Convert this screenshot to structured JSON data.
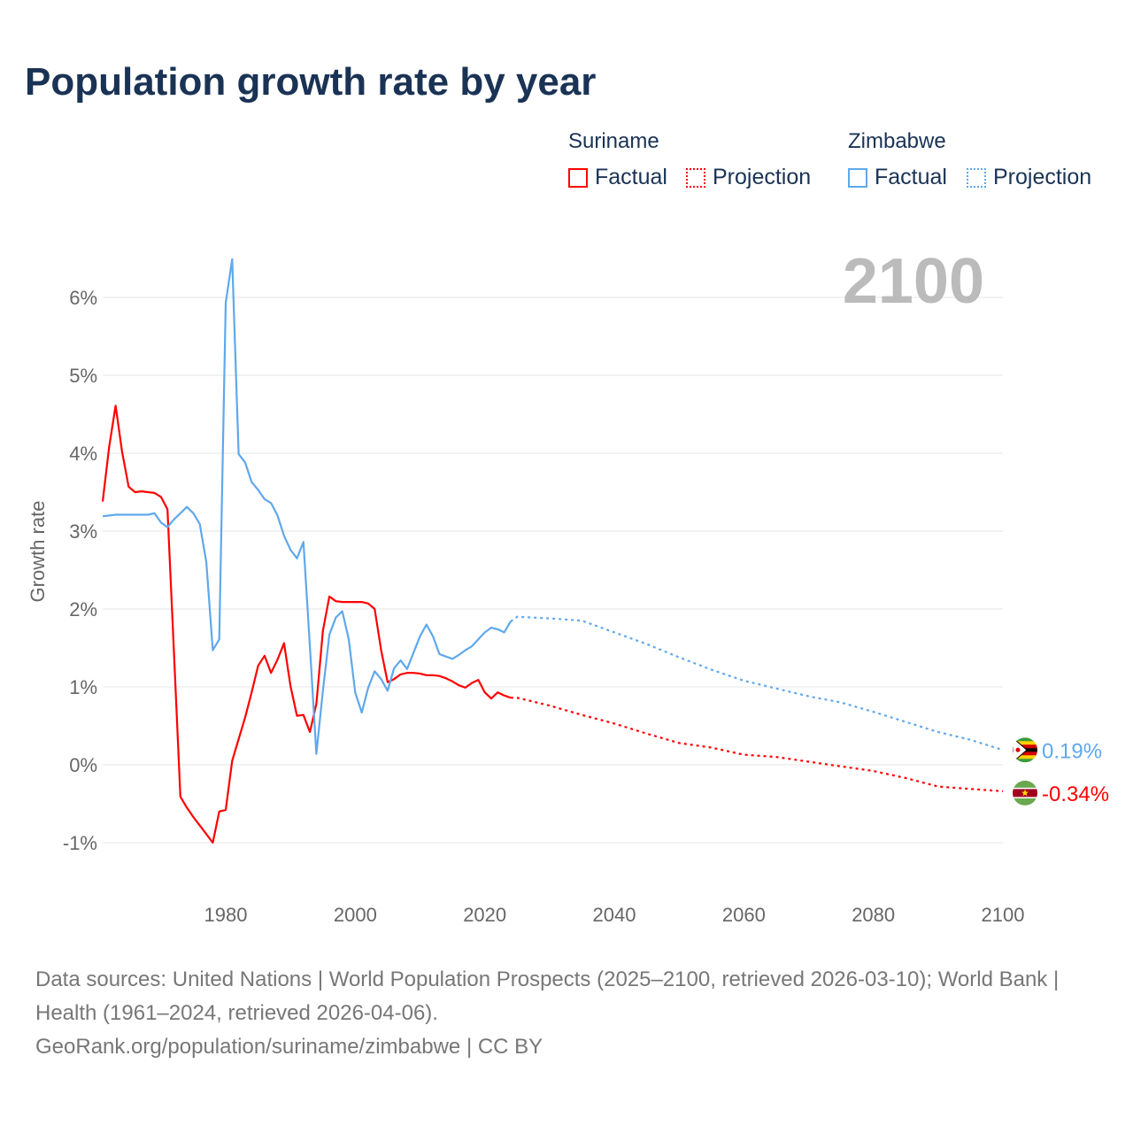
{
  "title": "Population growth rate by year",
  "legend": {
    "groups": [
      {
        "country": "Suriname",
        "factual": "Factual",
        "projection": "Projection",
        "color": "#ff0000"
      },
      {
        "country": "Zimbabwe",
        "factual": "Factual",
        "projection": "Projection",
        "color": "#5fa8ec"
      }
    ]
  },
  "year_label": "2100",
  "source": {
    "line1": "Data sources: United Nations | World Population Prospects (2025–2100, retrieved 2026-03-10); World Bank | Health (1961–2024, retrieved 2026-04-06).",
    "line2": "GeoRank.org/population/suriname/zimbabwe | CC BY"
  },
  "chart_data": {
    "type": "line",
    "title": "Population growth rate by year",
    "ylabel": "Growth rate",
    "xlabel": "",
    "xlim": [
      1961,
      2100
    ],
    "ylim": [
      -1.25,
      6.6
    ],
    "xticks": [
      1980,
      2000,
      2020,
      2040,
      2060,
      2080,
      2100
    ],
    "xtick_labels": [
      "1980",
      "2000",
      "2020",
      "2040",
      "2060",
      "2080",
      "2100"
    ],
    "yticks": [
      -1,
      0,
      1,
      2,
      3,
      4,
      5,
      6
    ],
    "ytick_labels": [
      "-1%",
      "0%",
      "1%",
      "2%",
      "3%",
      "4%",
      "5%",
      "6%"
    ],
    "grid": true,
    "legend_position": "top-right",
    "series": [
      {
        "name": "Suriname",
        "color": "#ff0000",
        "end_label": "-0.34%",
        "flag": "suriname-flag",
        "factual": {
          "x": [
            1961,
            1962,
            1963,
            1964,
            1965,
            1966,
            1967,
            1968,
            1969,
            1970,
            1971,
            1972,
            1973,
            1974,
            1975,
            1976,
            1977,
            1978,
            1979,
            1980,
            1981,
            1982,
            1983,
            1984,
            1985,
            1986,
            1987,
            1988,
            1989,
            1990,
            1991,
            1992,
            1993,
            1994,
            1995,
            1996,
            1997,
            1998,
            1999,
            2000,
            2001,
            2002,
            2003,
            2004,
            2005,
            2006,
            2007,
            2008,
            2009,
            2010,
            2011,
            2012,
            2013,
            2014,
            2015,
            2016,
            2017,
            2018,
            2019,
            2020,
            2021,
            2022,
            2023,
            2024
          ],
          "y": [
            3.38,
            4.08,
            4.61,
            4.02,
            3.57,
            3.5,
            3.51,
            3.5,
            3.49,
            3.44,
            3.28,
            1.45,
            -0.41,
            -0.55,
            -0.67,
            -0.78,
            -0.89,
            -1.0,
            -0.6,
            -0.58,
            0.05,
            0.33,
            0.61,
            0.93,
            1.27,
            1.4,
            1.18,
            1.35,
            1.56,
            1.01,
            0.63,
            0.64,
            0.42,
            0.78,
            1.72,
            2.16,
            2.1,
            2.09,
            2.09,
            2.09,
            2.09,
            2.07,
            2.0,
            1.47,
            1.06,
            1.1,
            1.16,
            1.18,
            1.18,
            1.17,
            1.15,
            1.15,
            1.14,
            1.11,
            1.07,
            1.02,
            0.99,
            1.05,
            1.09,
            0.93,
            0.85,
            0.93,
            0.89,
            0.86
          ]
        },
        "projection": {
          "x": [
            2024,
            2025,
            2030,
            2035,
            2040,
            2045,
            2050,
            2055,
            2060,
            2065,
            2070,
            2075,
            2080,
            2085,
            2090,
            2095,
            2100
          ],
          "y": [
            0.86,
            0.86,
            0.76,
            0.64,
            0.53,
            0.4,
            0.28,
            0.22,
            0.13,
            0.1,
            0.04,
            -0.02,
            -0.08,
            -0.17,
            -0.28,
            -0.31,
            -0.34
          ]
        }
      },
      {
        "name": "Zimbabwe",
        "color": "#5fa8ec",
        "end_label": "0.19%",
        "flag": "zimbabwe-flag",
        "factual": {
          "x": [
            1961,
            1962,
            1963,
            1964,
            1965,
            1966,
            1967,
            1968,
            1969,
            1970,
            1971,
            1972,
            1973,
            1974,
            1975,
            1976,
            1977,
            1978,
            1979,
            1980,
            1981,
            1982,
            1983,
            1984,
            1985,
            1986,
            1987,
            1988,
            1989,
            1990,
            1991,
            1992,
            1993,
            1994,
            1995,
            1996,
            1997,
            1998,
            1999,
            2000,
            2001,
            2002,
            2003,
            2004,
            2005,
            2006,
            2007,
            2008,
            2009,
            2010,
            2011,
            2012,
            2013,
            2014,
            2015,
            2016,
            2017,
            2018,
            2019,
            2020,
            2021,
            2022,
            2023,
            2024
          ],
          "y": [
            3.19,
            3.2,
            3.21,
            3.21,
            3.21,
            3.21,
            3.21,
            3.21,
            3.23,
            3.11,
            3.05,
            3.15,
            3.23,
            3.31,
            3.23,
            3.09,
            2.6,
            1.47,
            1.61,
            5.93,
            6.49,
            3.99,
            3.88,
            3.63,
            3.53,
            3.41,
            3.36,
            3.2,
            2.94,
            2.76,
            2.65,
            2.86,
            1.52,
            0.14,
            0.95,
            1.67,
            1.89,
            1.97,
            1.61,
            0.93,
            0.67,
            0.99,
            1.2,
            1.1,
            0.95,
            1.24,
            1.34,
            1.23,
            1.44,
            1.65,
            1.8,
            1.65,
            1.42,
            1.39,
            1.36,
            1.41,
            1.47,
            1.52,
            1.61,
            1.7,
            1.76,
            1.74,
            1.7,
            1.84
          ]
        },
        "projection": {
          "x": [
            2024,
            2025,
            2030,
            2035,
            2040,
            2045,
            2050,
            2055,
            2060,
            2065,
            2070,
            2075,
            2080,
            2085,
            2090,
            2095,
            2100
          ],
          "y": [
            1.84,
            1.9,
            1.88,
            1.85,
            1.7,
            1.55,
            1.38,
            1.22,
            1.08,
            0.98,
            0.88,
            0.8,
            0.68,
            0.55,
            0.42,
            0.32,
            0.19
          ]
        }
      }
    ]
  }
}
